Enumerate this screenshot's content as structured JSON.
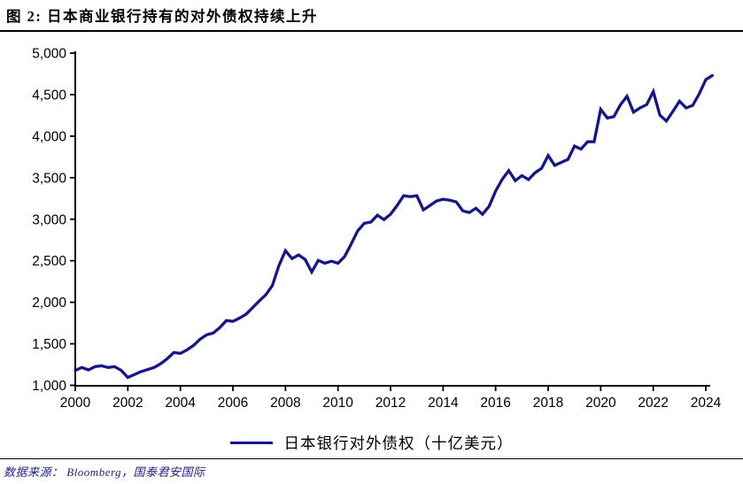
{
  "header": {
    "title": "图 2:  日本商业银行持有的对外债权持续上升"
  },
  "legend": {
    "label": "日本银行对外债权（十亿美元）"
  },
  "footer": {
    "source": "数据来源：  Bloomberg，国泰君安国际"
  },
  "colors": {
    "line": "#16168B",
    "axis": "#000000",
    "footer_text": "#20208C"
  },
  "chart_data": {
    "type": "line",
    "title": "图 2: 日本商业银行持有的对外债权持续上升",
    "series_name": "日本银行对外债权（十亿美元）",
    "xlabel": "",
    "ylabel": "",
    "x_start": 2000,
    "x_step": 0.25,
    "xlim": [
      2000,
      2024.6
    ],
    "ylim": [
      1000,
      5000
    ],
    "xticks": [
      2000,
      2002,
      2004,
      2006,
      2008,
      2010,
      2012,
      2014,
      2016,
      2018,
      2020,
      2022,
      2024
    ],
    "yticks": [
      1000,
      1500,
      2000,
      2500,
      3000,
      3500,
      4000,
      4500,
      5000
    ],
    "grid": false,
    "legend_position": "bottom",
    "values": [
      1180,
      1215,
      1185,
      1225,
      1235,
      1215,
      1225,
      1180,
      1095,
      1130,
      1165,
      1190,
      1215,
      1260,
      1320,
      1395,
      1385,
      1427,
      1480,
      1555,
      1608,
      1630,
      1695,
      1780,
      1770,
      1810,
      1855,
      1935,
      2015,
      2090,
      2200,
      2440,
      2620,
      2525,
      2570,
      2515,
      2365,
      2505,
      2470,
      2495,
      2470,
      2550,
      2700,
      2860,
      2950,
      2965,
      3048,
      2995,
      3060,
      3165,
      3283,
      3272,
      3283,
      3112,
      3165,
      3219,
      3240,
      3229,
      3208,
      3101,
      3080,
      3133,
      3059,
      3155,
      3340,
      3480,
      3585,
      3464,
      3525,
      3478,
      3560,
      3613,
      3766,
      3648,
      3684,
      3720,
      3880,
      3844,
      3933,
      3933,
      4324,
      4218,
      4235,
      4378,
      4480,
      4288,
      4341,
      4380,
      4538,
      4253,
      4182,
      4300,
      4421,
      4340,
      4370,
      4510,
      4680,
      4730
    ]
  }
}
